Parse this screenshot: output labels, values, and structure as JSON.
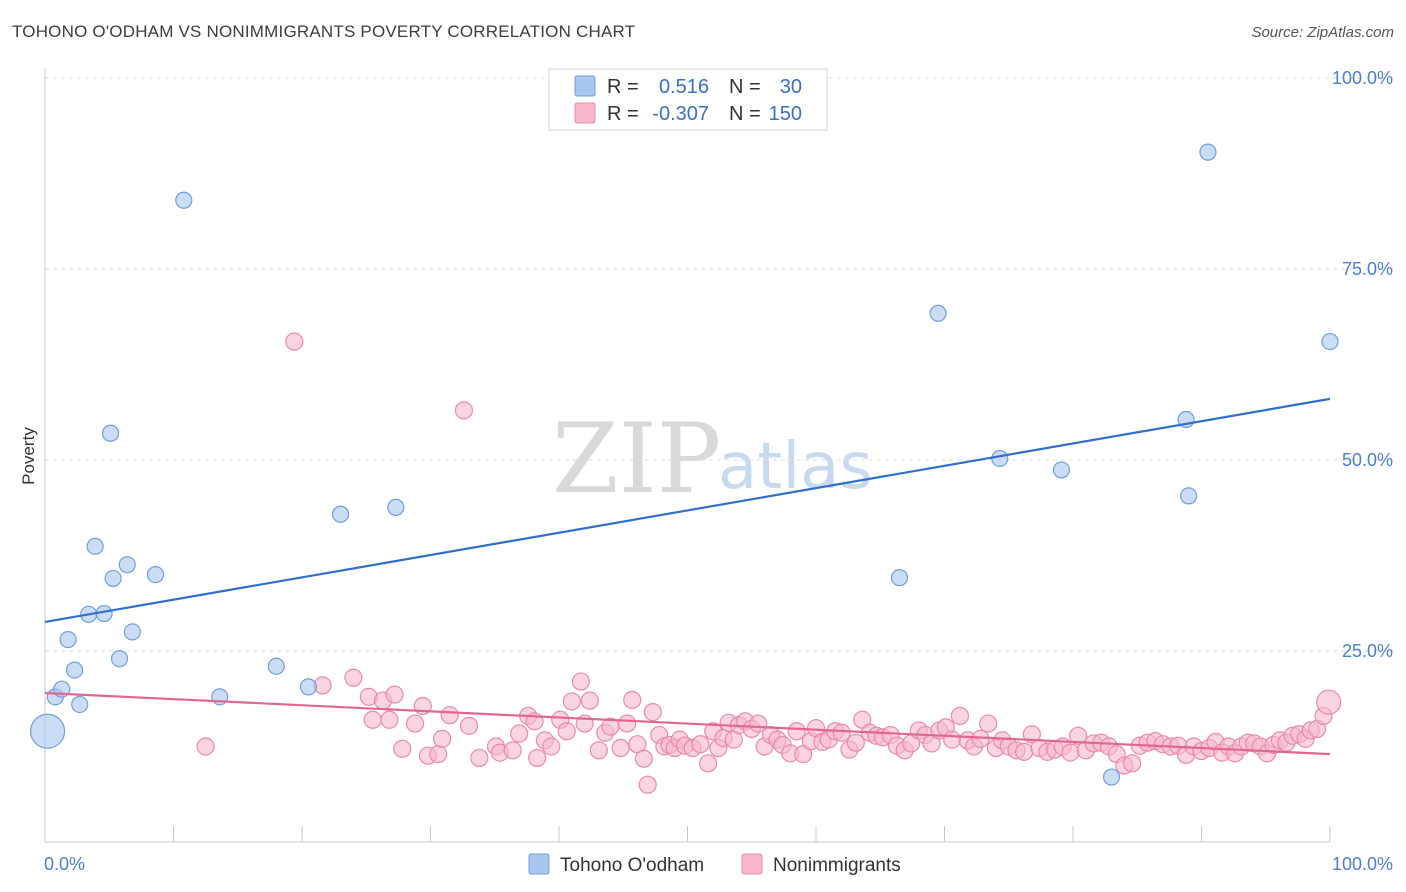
{
  "header": {
    "title": "TOHONO O'ODHAM VS NONIMMIGRANTS POVERTY CORRELATION CHART",
    "source": "Source: ZipAtlas.com"
  },
  "legend": {
    "r_label": "R =",
    "n_label": "N =",
    "rows": [
      {
        "r": "0.516",
        "n": "30",
        "color": "#a9c6ef",
        "stroke": "#6f9fdc"
      },
      {
        "r": "-0.307",
        "n": "150",
        "color": "#f7b8cb",
        "stroke": "#eb8aa8"
      }
    ]
  },
  "bottom_legend": {
    "items": [
      {
        "label": "Tohono O'odham",
        "color": "#a9c6ef",
        "stroke": "#6f9fdc"
      },
      {
        "label": "Nonimmigrants",
        "color": "#f7b8cb",
        "stroke": "#eb8aa8"
      }
    ]
  },
  "watermark": {
    "zip": "ZIP",
    "atlas": "atlas"
  },
  "chart_data": {
    "type": "scatter",
    "title": "TOHONO O'ODHAM VS NONIMMIGRANTS POVERTY CORRELATION CHART",
    "xlabel": "",
    "ylabel": "Poverty",
    "xlim": [
      0,
      100
    ],
    "ylim": [
      0,
      100
    ],
    "x_tick_labels": [
      "0.0%",
      "100.0%"
    ],
    "y_tick_labels": [
      "25.0%",
      "50.0%",
      "75.0%",
      "100.0%"
    ],
    "y_ticks": [
      25,
      50,
      75,
      100
    ],
    "grid": "horizontal dashed",
    "legend_position": "top-center",
    "series": [
      {
        "name": "Tohono O'odham",
        "color": "#6f9fdc",
        "fill": "#a9c6ef",
        "trend": {
          "x": [
            0,
            100
          ],
          "y": [
            28.8,
            58.0
          ],
          "color": "#2f6fcf"
        },
        "points": [
          [
            0.2,
            14.5
          ],
          [
            0.8,
            19.0
          ],
          [
            1.3,
            20.0
          ],
          [
            1.8,
            26.5
          ],
          [
            2.3,
            22.5
          ],
          [
            2.7,
            18.0
          ],
          [
            3.4,
            29.8
          ],
          [
            3.9,
            38.7
          ],
          [
            4.6,
            29.9
          ],
          [
            5.1,
            53.5
          ],
          [
            5.3,
            34.5
          ],
          [
            5.8,
            24.0
          ],
          [
            6.4,
            36.3
          ],
          [
            6.8,
            27.5
          ],
          [
            8.6,
            35.0
          ],
          [
            10.8,
            84.0
          ],
          [
            13.6,
            19.0
          ],
          [
            18.0,
            23.0
          ],
          [
            20.5,
            20.3
          ],
          [
            23.0,
            42.9
          ],
          [
            27.3,
            43.8
          ],
          [
            66.5,
            34.6
          ],
          [
            69.5,
            69.2
          ],
          [
            74.3,
            50.2
          ],
          [
            79.1,
            48.7
          ],
          [
            83.0,
            8.5
          ],
          [
            88.8,
            55.3
          ],
          [
            89.0,
            45.3
          ],
          [
            90.5,
            90.3
          ],
          [
            100.0,
            65.5
          ]
        ]
      },
      {
        "name": "Nonimmigrants",
        "color": "#eb8aa8",
        "fill": "#f7b8cb",
        "trend": {
          "x": [
            0,
            100
          ],
          "y": [
            19.5,
            11.5
          ],
          "color": "#e0678f"
        },
        "points": [
          [
            12.5,
            12.5
          ],
          [
            19.4,
            65.5
          ],
          [
            21.6,
            20.5
          ],
          [
            24.0,
            21.5
          ],
          [
            25.2,
            19.0
          ],
          [
            25.5,
            16.0
          ],
          [
            26.3,
            18.5
          ],
          [
            26.8,
            16.0
          ],
          [
            27.2,
            19.3
          ],
          [
            27.8,
            12.2
          ],
          [
            28.8,
            15.5
          ],
          [
            29.4,
            17.8
          ],
          [
            29.8,
            11.3
          ],
          [
            30.6,
            11.5
          ],
          [
            30.9,
            13.5
          ],
          [
            31.5,
            16.6
          ],
          [
            32.6,
            56.5
          ],
          [
            33.0,
            15.2
          ],
          [
            33.8,
            11.0
          ],
          [
            35.1,
            12.5
          ],
          [
            35.4,
            11.7
          ],
          [
            36.4,
            12.0
          ],
          [
            36.9,
            14.2
          ],
          [
            37.6,
            16.5
          ],
          [
            38.1,
            15.8
          ],
          [
            38.3,
            11.0
          ],
          [
            38.9,
            13.3
          ],
          [
            39.4,
            12.5
          ],
          [
            40.1,
            16.0
          ],
          [
            40.6,
            14.5
          ],
          [
            41.0,
            18.4
          ],
          [
            41.7,
            21.0
          ],
          [
            42.0,
            15.5
          ],
          [
            42.4,
            18.5
          ],
          [
            43.1,
            12.0
          ],
          [
            43.6,
            14.3
          ],
          [
            44.0,
            15.1
          ],
          [
            44.8,
            12.3
          ],
          [
            45.3,
            15.5
          ],
          [
            45.7,
            18.6
          ],
          [
            46.1,
            12.8
          ],
          [
            46.6,
            10.9
          ],
          [
            46.9,
            7.5
          ],
          [
            47.3,
            17.0
          ],
          [
            47.8,
            14.0
          ],
          [
            48.2,
            12.5
          ],
          [
            48.6,
            12.7
          ],
          [
            49.0,
            12.3
          ],
          [
            49.4,
            13.4
          ],
          [
            49.8,
            12.6
          ],
          [
            50.4,
            12.3
          ],
          [
            51.0,
            12.8
          ],
          [
            51.6,
            10.3
          ],
          [
            52.0,
            14.5
          ],
          [
            52.4,
            12.3
          ],
          [
            52.8,
            13.6
          ],
          [
            53.2,
            15.6
          ],
          [
            53.6,
            13.4
          ],
          [
            54.0,
            15.3
          ],
          [
            54.5,
            15.8
          ],
          [
            55.0,
            14.8
          ],
          [
            55.5,
            15.5
          ],
          [
            56.0,
            12.5
          ],
          [
            56.5,
            14.0
          ],
          [
            57.0,
            13.4
          ],
          [
            57.4,
            12.7
          ],
          [
            58.0,
            11.6
          ],
          [
            58.5,
            14.5
          ],
          [
            59.0,
            11.5
          ],
          [
            59.6,
            13.2
          ],
          [
            60.0,
            14.9
          ],
          [
            60.5,
            13.1
          ],
          [
            61.0,
            13.4
          ],
          [
            61.5,
            14.5
          ],
          [
            62.0,
            14.3
          ],
          [
            62.6,
            12.1
          ],
          [
            63.1,
            13.0
          ],
          [
            63.6,
            16.0
          ],
          [
            64.2,
            14.3
          ],
          [
            64.7,
            13.9
          ],
          [
            65.2,
            13.7
          ],
          [
            65.8,
            14.0
          ],
          [
            66.3,
            12.6
          ],
          [
            66.9,
            12.0
          ],
          [
            67.4,
            12.9
          ],
          [
            68.0,
            14.6
          ],
          [
            68.5,
            14.0
          ],
          [
            69.0,
            12.9
          ],
          [
            69.6,
            14.6
          ],
          [
            70.1,
            15.0
          ],
          [
            70.6,
            13.4
          ],
          [
            71.2,
            16.5
          ],
          [
            71.8,
            13.3
          ],
          [
            72.3,
            12.5
          ],
          [
            72.8,
            13.5
          ],
          [
            73.4,
            15.5
          ],
          [
            74.0,
            12.3
          ],
          [
            74.5,
            13.3
          ],
          [
            75.0,
            12.5
          ],
          [
            75.6,
            12.0
          ],
          [
            76.2,
            11.8
          ],
          [
            76.8,
            14.1
          ],
          [
            77.4,
            12.3
          ],
          [
            78.0,
            11.8
          ],
          [
            78.6,
            12.1
          ],
          [
            79.2,
            12.5
          ],
          [
            79.8,
            11.7
          ],
          [
            80.4,
            13.9
          ],
          [
            81.0,
            12.0
          ],
          [
            81.6,
            12.9
          ],
          [
            82.2,
            13.0
          ],
          [
            82.8,
            12.5
          ],
          [
            83.4,
            11.5
          ],
          [
            84.0,
            10.0
          ],
          [
            84.6,
            10.3
          ],
          [
            85.2,
            12.6
          ],
          [
            85.8,
            13.0
          ],
          [
            86.4,
            13.2
          ],
          [
            87.0,
            12.8
          ],
          [
            87.6,
            12.5
          ],
          [
            88.2,
            12.6
          ],
          [
            88.8,
            11.4
          ],
          [
            89.4,
            12.5
          ],
          [
            90.0,
            11.9
          ],
          [
            90.6,
            12.3
          ],
          [
            91.1,
            13.1
          ],
          [
            91.6,
            11.7
          ],
          [
            92.1,
            12.5
          ],
          [
            92.6,
            11.6
          ],
          [
            93.1,
            12.5
          ],
          [
            93.6,
            13.0
          ],
          [
            94.1,
            12.9
          ],
          [
            94.6,
            12.5
          ],
          [
            95.1,
            11.6
          ],
          [
            95.6,
            12.7
          ],
          [
            96.1,
            13.3
          ],
          [
            96.6,
            13.0
          ],
          [
            97.1,
            13.9
          ],
          [
            97.6,
            14.1
          ],
          [
            98.1,
            13.5
          ],
          [
            98.5,
            14.6
          ],
          [
            99.0,
            14.8
          ],
          [
            99.5,
            16.5
          ],
          [
            99.9,
            18.3
          ]
        ]
      }
    ]
  }
}
